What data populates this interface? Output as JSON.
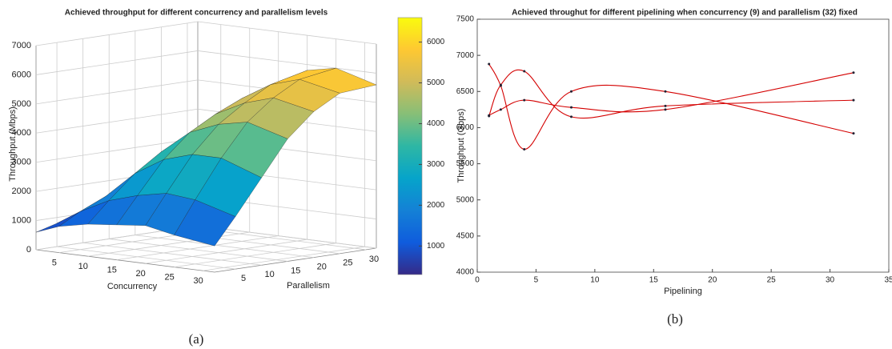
{
  "chart_data": [
    {
      "type": "surface3d",
      "title": "Achieved throughput for different concurrency and parallelism levels",
      "xlabel": "Concurrency",
      "ylabel": "Parallelism",
      "zlabel": "Throughput (Mbps)",
      "x": [
        1,
        5,
        10,
        15,
        20,
        25,
        32
      ],
      "y": [
        1,
        5,
        10,
        15,
        20,
        25,
        32
      ],
      "z": [
        [
          600,
          800,
          1000,
          1100,
          1200,
          1300,
          1500
        ],
        [
          900,
          1300,
          1700,
          2000,
          2200,
          2400,
          2600
        ],
        [
          1100,
          1800,
          2600,
          3200,
          3600,
          3900,
          4200
        ],
        [
          1200,
          2100,
          3200,
          4000,
          4500,
          4900,
          5200
        ],
        [
          1300,
          2300,
          3500,
          4400,
          5000,
          5500,
          5800
        ],
        [
          1100,
          2200,
          3500,
          4600,
          5300,
          5800,
          6000
        ],
        [
          900,
          1800,
          3000,
          4200,
          5000,
          5500,
          5600
        ]
      ],
      "xlim": [
        1,
        32
      ],
      "ylim": [
        1,
        32
      ],
      "zlim": [
        0,
        7000
      ],
      "xticks": [
        5,
        10,
        15,
        20,
        25,
        30
      ],
      "yticks": [
        5,
        10,
        15,
        20,
        25,
        30
      ],
      "zticks": [
        0,
        1000,
        2000,
        3000,
        4000,
        5000,
        6000,
        7000
      ],
      "colormap": [
        "#352a87",
        "#0f5cdd",
        "#1481d6",
        "#06a4ca",
        "#2eb7a4",
        "#87bf77",
        "#d1bb59",
        "#fec832",
        "#f9fb0e"
      ],
      "clim": [
        300,
        6600
      ],
      "cticks": [
        1000,
        2000,
        3000,
        4000,
        5000,
        6000
      ],
      "caption": "(a)"
    },
    {
      "type": "line",
      "title": "Achieved throughut for different pipelining when concurrency (9) and parallelism (32) fixed",
      "xlabel": "Pipelining",
      "ylabel": "Throughput (Gbps)",
      "x": [
        1,
        2,
        4,
        8,
        16,
        32
      ],
      "series": [
        {
          "color": "#d40000",
          "values": [
            6880,
            6580,
            5700,
            6500,
            6500,
            5920
          ]
        },
        {
          "color": "#d40000",
          "values": [
            6160,
            6590,
            6780,
            6150,
            6300,
            6380
          ]
        },
        {
          "color": "#d40000",
          "values": [
            6170,
            6250,
            6380,
            6280,
            6250,
            6760
          ]
        }
      ],
      "xlim": [
        0,
        35
      ],
      "ylim": [
        4000,
        7500
      ],
      "xticks": [
        0,
        5,
        10,
        15,
        20,
        25,
        30,
        35
      ],
      "yticks": [
        4000,
        4500,
        5000,
        5500,
        6000,
        6500,
        7000,
        7500
      ],
      "caption": "(b)"
    }
  ]
}
